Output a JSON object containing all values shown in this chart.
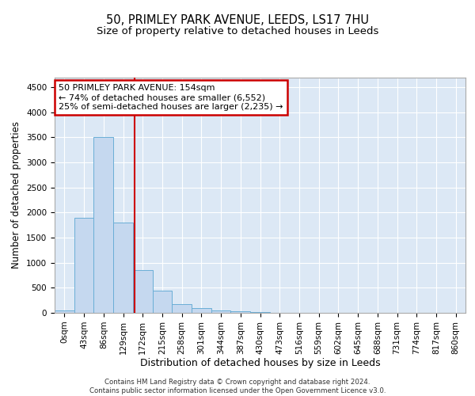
{
  "title1": "50, PRIMLEY PARK AVENUE, LEEDS, LS17 7HU",
  "title2": "Size of property relative to detached houses in Leeds",
  "xlabel": "Distribution of detached houses by size in Leeds",
  "ylabel": "Number of detached properties",
  "bar_labels": [
    "0sqm",
    "43sqm",
    "86sqm",
    "129sqm",
    "172sqm",
    "215sqm",
    "258sqm",
    "301sqm",
    "344sqm",
    "387sqm",
    "430sqm",
    "473sqm",
    "516sqm",
    "559sqm",
    "602sqm",
    "645sqm",
    "688sqm",
    "731sqm",
    "774sqm",
    "817sqm",
    "860sqm"
  ],
  "bar_heights": [
    50,
    1900,
    3500,
    1800,
    850,
    450,
    175,
    90,
    50,
    25,
    15,
    5,
    3,
    2,
    1,
    1,
    0,
    0,
    0,
    0,
    0
  ],
  "bar_color": "#c5d8ef",
  "bar_edgecolor": "#6aaed6",
  "vline_x": 3.58,
  "vline_color": "#cc0000",
  "annotation_text": "50 PRIMLEY PARK AVENUE: 154sqm\n← 74% of detached houses are smaller (6,552)\n25% of semi-detached houses are larger (2,235) →",
  "annotation_box_color": "#cc0000",
  "ylim": [
    0,
    4700
  ],
  "yticks": [
    0,
    500,
    1000,
    1500,
    2000,
    2500,
    3000,
    3500,
    4000,
    4500
  ],
  "footer": "Contains HM Land Registry data © Crown copyright and database right 2024.\nContains public sector information licensed under the Open Government Licence v3.0.",
  "bg_color": "#dce8f5",
  "title1_fontsize": 10.5,
  "title2_fontsize": 9.5,
  "tick_fontsize": 7.5,
  "ylabel_fontsize": 8.5,
  "xlabel_fontsize": 9,
  "annot_fontsize": 8
}
